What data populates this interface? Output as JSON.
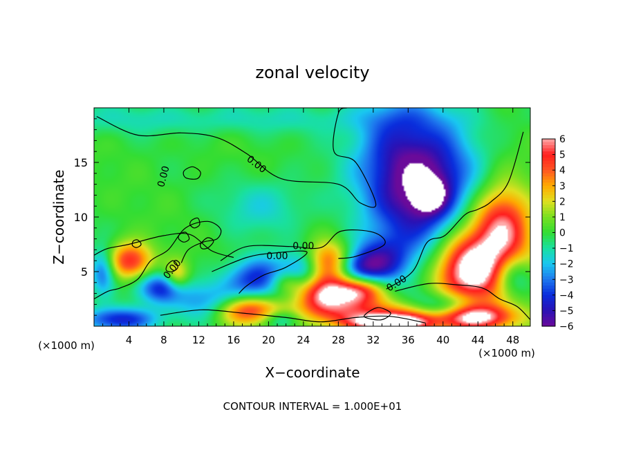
{
  "chart_data": {
    "type": "heatmap",
    "title": "zonal velocity",
    "xlabel": "X−coordinate",
    "ylabel": "Z−coordinate",
    "x_unit": "(×1000 m)",
    "y_unit": "(×1000 m)",
    "xlim": [
      0,
      50
    ],
    "ylim": [
      0,
      20
    ],
    "x_ticks": [
      4,
      8,
      12,
      16,
      20,
      24,
      28,
      32,
      36,
      40,
      44,
      48
    ],
    "y_ticks": [
      5,
      10,
      15
    ],
    "footer": "CONTOUR INTERVAL = 1.000E+01",
    "contour_labels": [
      "0.00",
      "0.00",
      "0.00",
      "0.00",
      "0.00",
      "0.00"
    ],
    "colorbar": {
      "ticks": [
        6,
        5,
        4,
        3,
        2,
        1,
        0,
        -1,
        -2,
        -3,
        -4,
        -5,
        -6
      ],
      "tick_labels": [
        "6",
        "5",
        "4",
        "3",
        "2",
        "1",
        "0",
        "−1",
        "−2",
        "−3",
        "−4",
        "−5",
        "−6"
      ],
      "range": [
        -6,
        6
      ],
      "colors": {
        "-6": "#6a0a9a",
        "-5": "#2a12b5",
        "-4": "#0a2ddc",
        "-3": "#1e78ee",
        "-2": "#19c8f0",
        "-1": "#19e0a0",
        "0": "#33dd33",
        "1": "#7ae020",
        "2": "#e0e020",
        "3": "#ffaa00",
        "4": "#ff5522",
        "5": "#ff1e1e",
        "6": "#ffaaaa"
      },
      "overflow_color": "#ffffff"
    },
    "features": [
      {
        "x": 38.2,
        "z": 12.3,
        "sx": 4.0,
        "sz": 3.6,
        "value": -5.5
      },
      {
        "x": 38.5,
        "z": 12.0,
        "sx": 1.2,
        "sz": 1.0,
        "value": -4
      },
      {
        "x": 36.0,
        "z": 14.5,
        "sx": 5.0,
        "sz": 5.5,
        "value": -1.8
      },
      {
        "x": 34.0,
        "z": 16.5,
        "sx": 3.0,
        "sz": 3.0,
        "value": -1.6
      },
      {
        "x": 19.5,
        "z": 11.0,
        "sx": 3.5,
        "sz": 1.8,
        "value": -1.6
      },
      {
        "x": 12.0,
        "z": 19.0,
        "sx": 20.0,
        "sz": 1.0,
        "value": -1.2
      },
      {
        "x": 45.0,
        "z": 6.8,
        "sx": 4.0,
        "sz": 4.0,
        "value": 4.5
      },
      {
        "x": 47.0,
        "z": 9.5,
        "sx": 2.0,
        "sz": 2.5,
        "value": 3.0
      },
      {
        "x": 43.0,
        "z": 5.0,
        "sx": 2.8,
        "sz": 2.0,
        "value": 4.5
      },
      {
        "x": 27.0,
        "z": 5.8,
        "sx": 2.0,
        "sz": 1.3,
        "value": 5.5
      },
      {
        "x": 26.5,
        "z": 2.8,
        "sx": 2.5,
        "sz": 1.3,
        "value": 6
      },
      {
        "x": 30.5,
        "z": 3.3,
        "sx": 2.0,
        "sz": 1.0,
        "value": 5.5
      },
      {
        "x": 30.0,
        "z": 5.2,
        "sx": 2.2,
        "sz": 1.2,
        "value": -4.5
      },
      {
        "x": 33.0,
        "z": 6.0,
        "sx": 2.5,
        "sz": 1.6,
        "value": -3.5
      },
      {
        "x": 19.0,
        "z": 4.2,
        "sx": 2.8,
        "sz": 1.4,
        "value": -4.5
      },
      {
        "x": 24.0,
        "z": 5.2,
        "sx": 1.6,
        "sz": 1.3,
        "value": -3
      },
      {
        "x": 4.2,
        "z": 6.0,
        "sx": 1.8,
        "sz": 1.2,
        "value": 5.0
      },
      {
        "x": 1.0,
        "z": 5.0,
        "sx": 1.0,
        "sz": 1.5,
        "value": -3.5
      },
      {
        "x": 7.5,
        "z": 3.5,
        "sx": 2.0,
        "sz": 1.0,
        "value": -4
      },
      {
        "x": 13.0,
        "z": 2.2,
        "sx": 2.5,
        "sz": 1.2,
        "value": -3
      },
      {
        "x": 9.5,
        "z": 4.6,
        "sx": 1.0,
        "sz": 1.0,
        "value": 3
      },
      {
        "x": 3.0,
        "z": 0.6,
        "sx": 3.0,
        "sz": 0.8,
        "value": -4.5
      },
      {
        "x": 17.5,
        "z": 1.5,
        "sx": 2.8,
        "sz": 1.0,
        "value": 5
      },
      {
        "x": 33.0,
        "z": 0.9,
        "sx": 5.0,
        "sz": 0.9,
        "value": 4.5
      },
      {
        "x": 34.0,
        "z": 0.3,
        "sx": 3.0,
        "sz": 0.5,
        "value": 6
      },
      {
        "x": 43.0,
        "z": 0.8,
        "sx": 3.5,
        "sz": 0.8,
        "value": 6
      },
      {
        "x": 40.0,
        "z": 1.5,
        "sx": 2.5,
        "sz": 1.0,
        "value": -4
      },
      {
        "x": 48.0,
        "z": 4.5,
        "sx": 1.8,
        "sz": 1.5,
        "value": -4
      },
      {
        "x": 21.5,
        "z": 0.6,
        "sx": 1.5,
        "sz": 0.6,
        "value": -2.5
      },
      {
        "x": 22.0,
        "z": 4.0,
        "sx": 1.5,
        "sz": 0.8,
        "value": 3
      }
    ],
    "contours": [
      [
        [
          0.3,
          19.2
        ],
        [
          5,
          17.5
        ],
        [
          10,
          17.7
        ],
        [
          14,
          17.3
        ],
        [
          17.5,
          15.8
        ],
        [
          21.5,
          13.5
        ],
        [
          28,
          13.0
        ],
        [
          30.5,
          11.3
        ],
        [
          32.3,
          11.2
        ],
        [
          30,
          15.0
        ],
        [
          27.5,
          16.0
        ],
        [
          28,
          19.5
        ],
        [
          29,
          20
        ]
      ],
      [
        [
          0,
          6.5
        ],
        [
          1.5,
          7.1
        ],
        [
          4,
          7.5
        ],
        [
          8,
          8.3
        ],
        [
          11,
          8.4
        ],
        [
          13.5,
          6.9
        ],
        [
          16,
          6.3
        ]
      ],
      [
        [
          14.5,
          6.0
        ],
        [
          17.5,
          7.3
        ],
        [
          22.5,
          7.3
        ],
        [
          26,
          7.2
        ],
        [
          28.3,
          8.7
        ],
        [
          32,
          8.6
        ],
        [
          33.3,
          7.5
        ],
        [
          30,
          6.4
        ],
        [
          28,
          6.2
        ]
      ],
      [
        [
          0,
          2.5
        ],
        [
          1.6,
          3.2
        ],
        [
          3,
          3.5
        ],
        [
          5,
          4.3
        ],
        [
          6.5,
          6.0
        ],
        [
          8.5,
          7.0
        ],
        [
          10.5,
          9.0
        ],
        [
          13,
          9.6
        ],
        [
          14.5,
          8.9
        ],
        [
          14.1,
          8.0
        ],
        [
          12.5,
          7.7
        ],
        [
          10.8,
          7.0
        ],
        [
          10,
          5.8
        ]
      ],
      [
        [
          13.5,
          5.0
        ],
        [
          17.5,
          6.3
        ],
        [
          20.6,
          6.7
        ],
        [
          24.4,
          6.8
        ],
        [
          22,
          5.4
        ],
        [
          19.5,
          4.7
        ],
        [
          17.5,
          3.7
        ],
        [
          16.6,
          3.0
        ]
      ],
      [
        [
          33.5,
          3.4
        ],
        [
          36.5,
          5.0
        ],
        [
          38.2,
          7.7
        ],
        [
          40.2,
          8.3
        ],
        [
          42.5,
          10.2
        ],
        [
          44.0,
          10.7
        ],
        [
          45.5,
          11.4
        ],
        [
          47.5,
          13.2
        ],
        [
          49.2,
          17.8
        ]
      ],
      [
        [
          34.5,
          3.2
        ],
        [
          38.3,
          3.9
        ],
        [
          41.5,
          3.8
        ],
        [
          44.5,
          3.5
        ],
        [
          46.5,
          2.5
        ],
        [
          48.5,
          1.8
        ],
        [
          50,
          0.6
        ]
      ],
      [
        [
          7.6,
          1.0
        ],
        [
          12.3,
          1.5
        ],
        [
          17,
          1.2
        ],
        [
          22,
          0.8
        ],
        [
          26,
          0.4
        ],
        [
          30,
          0.8
        ],
        [
          34,
          0.9
        ],
        [
          38,
          0.3
        ]
      ]
    ],
    "closed_contours": [
      [
        [
          10.3,
          14.2
        ],
        [
          11.3,
          14.6
        ],
        [
          12.2,
          14.1
        ],
        [
          11.8,
          13.5
        ],
        [
          10.5,
          13.6
        ]
      ],
      [
        [
          4.5,
          7.8
        ],
        [
          5.0,
          7.9
        ],
        [
          5.4,
          7.5
        ],
        [
          4.9,
          7.2
        ],
        [
          4.4,
          7.4
        ]
      ],
      [
        [
          9.8,
          8.4
        ],
        [
          10.5,
          8.6
        ],
        [
          10.9,
          8.0
        ],
        [
          10.3,
          7.7
        ],
        [
          9.7,
          8.0
        ]
      ],
      [
        [
          11.2,
          9.7
        ],
        [
          11.9,
          9.9
        ],
        [
          12.1,
          9.3
        ],
        [
          11.5,
          9.0
        ],
        [
          11.0,
          9.3
        ]
      ],
      [
        [
          12.2,
          7.5
        ],
        [
          13.0,
          8.1
        ],
        [
          13.7,
          7.8
        ],
        [
          13.1,
          7.2
        ],
        [
          12.4,
          7.1
        ]
      ],
      [
        [
          8.4,
          5.6
        ],
        [
          9.1,
          6.0
        ],
        [
          9.6,
          5.4
        ],
        [
          9.0,
          5.0
        ],
        [
          8.3,
          5.1
        ]
      ],
      [
        [
          31.0,
          1.0
        ],
        [
          32.5,
          1.7
        ],
        [
          34.0,
          1.2
        ],
        [
          33.0,
          0.6
        ],
        [
          31.5,
          0.7
        ]
      ]
    ],
    "contour_label_positions": [
      {
        "x": 8.0,
        "z": 13.7,
        "angle": -75
      },
      {
        "x": 18.6,
        "z": 14.8,
        "angle": 38
      },
      {
        "x": 24.0,
        "z": 7.3,
        "angle": 0
      },
      {
        "x": 21.0,
        "z": 6.4,
        "angle": 0
      },
      {
        "x": 9.0,
        "z": 5.2,
        "angle": -50
      },
      {
        "x": 34.7,
        "z": 3.9,
        "angle": -32
      }
    ],
    "grid": false,
    "legend": "right"
  }
}
